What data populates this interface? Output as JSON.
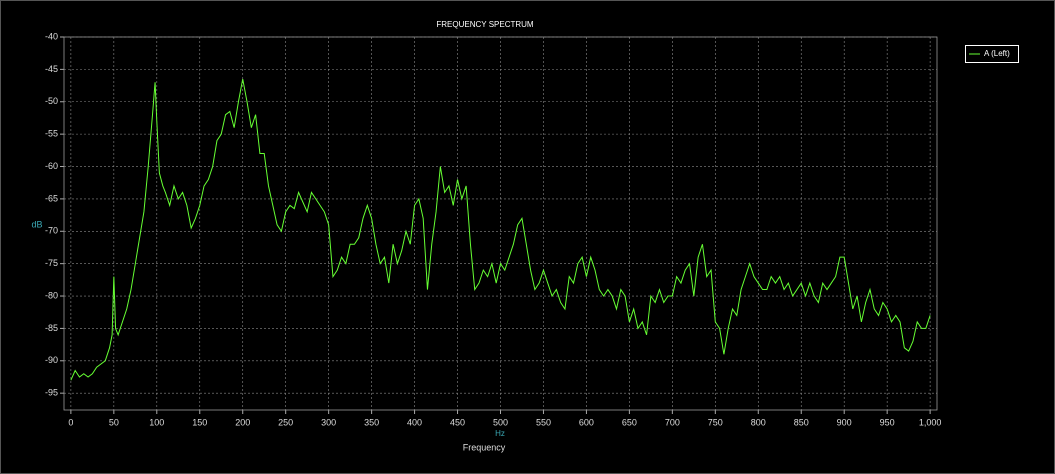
{
  "chart_data": {
    "type": "line",
    "title": "FREQUENCY SPECTRUM",
    "x_label": "Frequency",
    "x_unit": "Hz",
    "y_label": "dB",
    "x": [
      0,
      5,
      10,
      15,
      20,
      25,
      30,
      35,
      40,
      45,
      48,
      50,
      52,
      55,
      60,
      65,
      70,
      75,
      80,
      85,
      90,
      95,
      98,
      100,
      103,
      107,
      110,
      115,
      120,
      125,
      130,
      135,
      140,
      145,
      150,
      155,
      160,
      165,
      170,
      175,
      180,
      185,
      190,
      195,
      200,
      205,
      210,
      215,
      220,
      225,
      230,
      235,
      240,
      245,
      250,
      255,
      260,
      265,
      270,
      275,
      280,
      285,
      290,
      295,
      300,
      305,
      310,
      315,
      320,
      325,
      330,
      335,
      340,
      345,
      350,
      355,
      360,
      365,
      370,
      375,
      380,
      385,
      390,
      395,
      400,
      405,
      410,
      415,
      420,
      425,
      430,
      435,
      440,
      445,
      450,
      455,
      460,
      465,
      470,
      475,
      480,
      485,
      490,
      495,
      500,
      505,
      510,
      515,
      520,
      525,
      530,
      535,
      540,
      545,
      550,
      555,
      560,
      565,
      570,
      575,
      580,
      585,
      590,
      595,
      600,
      605,
      610,
      615,
      620,
      625,
      630,
      635,
      640,
      645,
      650,
      655,
      660,
      665,
      670,
      675,
      680,
      685,
      690,
      695,
      700,
      705,
      710,
      715,
      720,
      725,
      730,
      735,
      740,
      745,
      750,
      755,
      760,
      765,
      770,
      775,
      780,
      785,
      790,
      795,
      800,
      805,
      810,
      815,
      820,
      825,
      830,
      835,
      840,
      845,
      850,
      855,
      860,
      865,
      870,
      875,
      880,
      885,
      890,
      895,
      900,
      905,
      910,
      915,
      920,
      925,
      930,
      935,
      940,
      945,
      950,
      955,
      960,
      965,
      970,
      975,
      980,
      985,
      990,
      995,
      1000
    ],
    "series": [
      {
        "name": "A (Left)",
        "color": "#66ff33",
        "values": [
          -93,
          -91.5,
          -92.5,
          -92,
          -92.5,
          -92,
          -91,
          -90.5,
          -90,
          -88,
          -86,
          -77,
          -85,
          -86,
          -84,
          -82,
          -79,
          -75,
          -71,
          -67,
          -60,
          -52,
          -47,
          -53,
          -61,
          -63,
          -64,
          -66,
          -63,
          -65,
          -64,
          -66,
          -69.5,
          -68,
          -66,
          -63,
          -62,
          -60,
          -56,
          -55,
          -52,
          -51.5,
          -54,
          -50,
          -46.5,
          -50,
          -54,
          -52,
          -58,
          -58,
          -63,
          -66,
          -69,
          -70,
          -67,
          -66,
          -66.5,
          -64,
          -65.5,
          -67,
          -64,
          -65,
          -66,
          -67,
          -69,
          -77,
          -76,
          -74,
          -75,
          -72,
          -72,
          -71,
          -68,
          -66,
          -68,
          -72,
          -75,
          -74,
          -78,
          -72,
          -75,
          -73,
          -70,
          -72,
          -66,
          -65,
          -68,
          -79,
          -72,
          -67,
          -60,
          -64,
          -63,
          -66,
          -62,
          -65,
          -63,
          -72,
          -79,
          -78,
          -76,
          -77,
          -75,
          -78,
          -75,
          -76,
          -74,
          -72,
          -69,
          -68,
          -72,
          -76,
          -79,
          -78,
          -76,
          -78,
          -80,
          -79,
          -81,
          -82,
          -77,
          -78,
          -75,
          -74,
          -77,
          -74,
          -76,
          -79,
          -80,
          -79,
          -80,
          -82,
          -79,
          -80,
          -84,
          -82,
          -85,
          -84,
          -86,
          -80,
          -81,
          -79,
          -81,
          -80,
          -80,
          -77,
          -78,
          -76,
          -75,
          -80,
          -74,
          -72,
          -77,
          -76,
          -84,
          -85,
          -89,
          -85,
          -82,
          -83,
          -79,
          -77,
          -75,
          -77,
          -78,
          -79,
          -79,
          -77,
          -78,
          -77,
          -79,
          -78,
          -80,
          -79,
          -78,
          -80,
          -78,
          -80,
          -81,
          -78,
          -79,
          -78,
          -77,
          -74,
          -74,
          -78,
          -82,
          -80,
          -84,
          -81,
          -79,
          -82,
          -83,
          -81,
          -82,
          -84,
          -83,
          -84,
          -88,
          -88.5,
          -87,
          -84,
          -85,
          -85,
          -83
        ]
      }
    ],
    "xlim": [
      -8,
      1008
    ],
    "ylim": [
      -97.6,
      -40
    ],
    "xticks": [
      0,
      50,
      100,
      150,
      200,
      250,
      300,
      350,
      400,
      450,
      500,
      550,
      600,
      650,
      700,
      750,
      800,
      850,
      900,
      950,
      {
        "value": 1000,
        "label": "1,000"
      }
    ],
    "yticks": [
      -40,
      -45,
      -50,
      -55,
      -60,
      -65,
      -70,
      -75,
      -80,
      -85,
      -90,
      -95
    ],
    "grid": true
  }
}
